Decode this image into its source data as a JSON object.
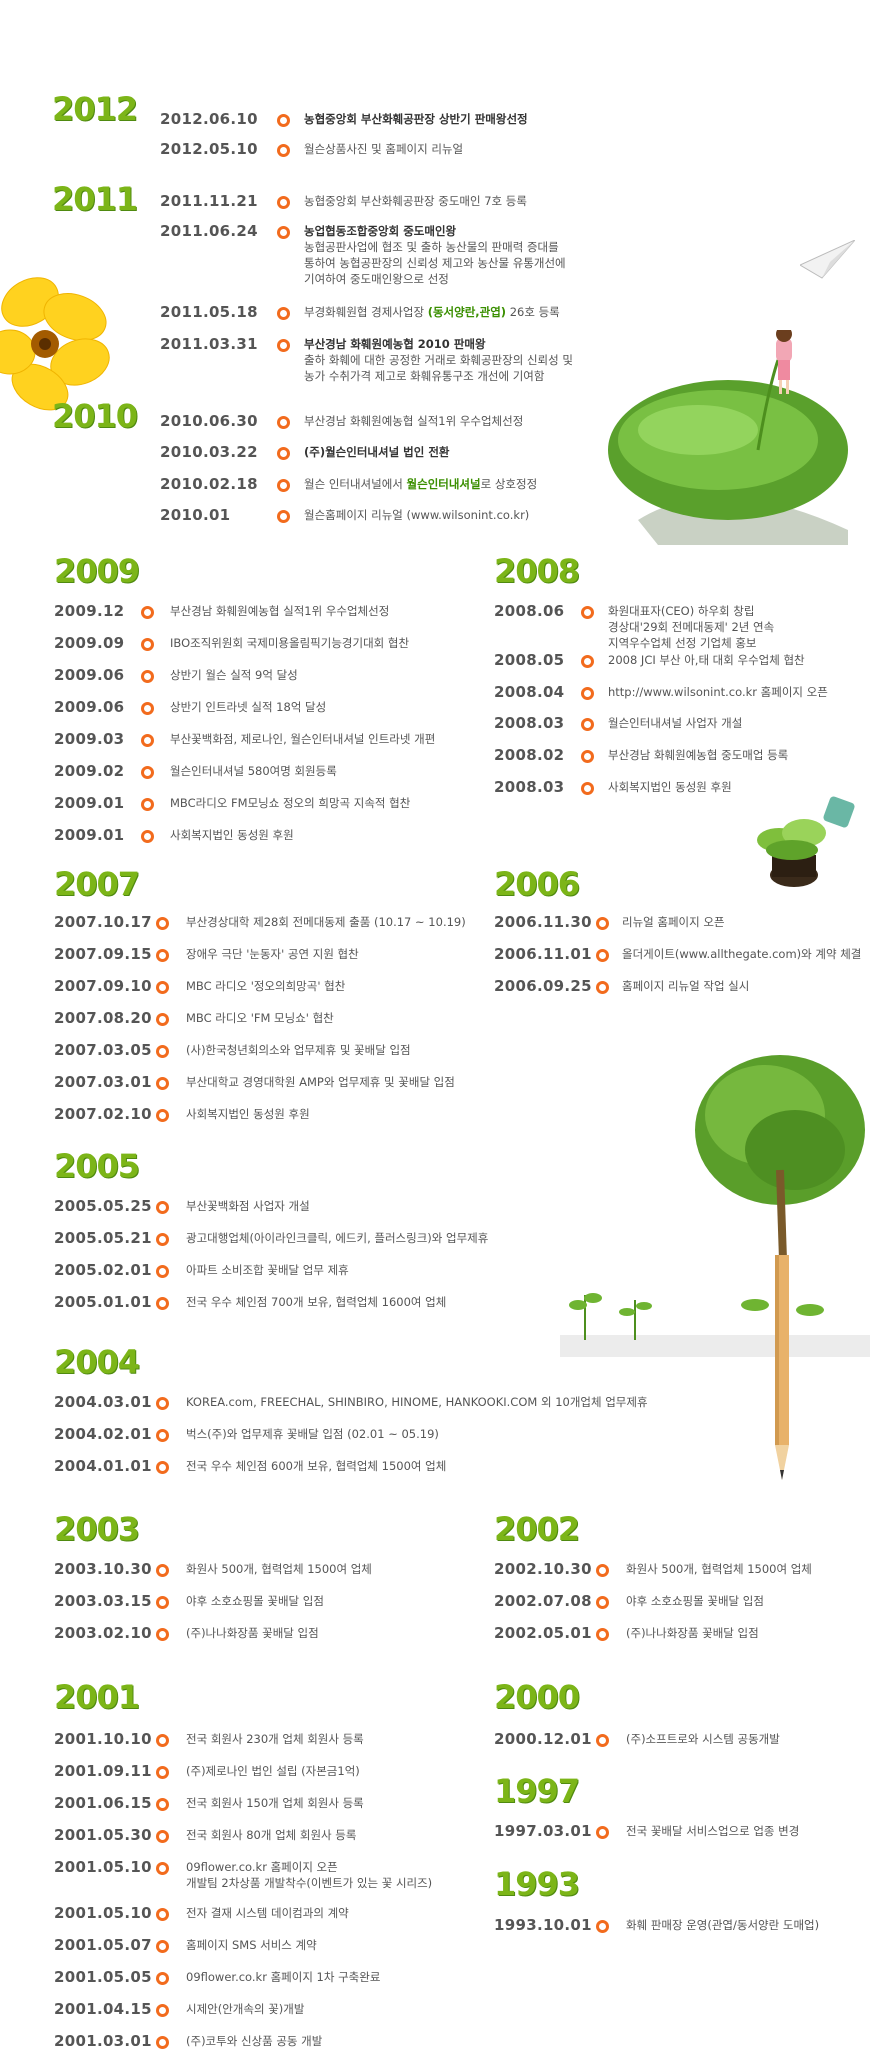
{
  "top": [
    {
      "year": "2012",
      "items": [
        {
          "date": "2012.06.10",
          "text": "농협중앙회 부산화훼공판장 상반기 판매왕선정",
          "bold": true
        },
        {
          "date": "2012.05.10",
          "text": "월슨상품사진 및 홈페이지 리뉴얼"
        }
      ]
    },
    {
      "year": "2011",
      "items": [
        {
          "date": "2011.11.21",
          "text": "농협중앙회 부산화훼공판장 중도매인 7호 등록"
        },
        {
          "date": "2011.06.24",
          "text": "농업협동조합중앙회 중도매인왕",
          "bold": true,
          "lines": [
            "농협공판사업에 협조 및 출하 농산물의 판매력 증대를",
            "통하여 농협공판장의 신뢰성 제고와 농산물 유통개선에",
            "기여하여 중도매인왕으로 선정"
          ]
        },
        {
          "date": "2011.05.18",
          "text": "부경화훼원협 경제사업장 ",
          "hl": "(동서양란,관엽)",
          "after": " 26호 등록"
        },
        {
          "date": "2011.03.31",
          "text": "부산경남 화훼원예농협 2010 판매왕",
          "bold": true,
          "lines": [
            "출하 화훼에 대한 공정한 거래로 화훼공판장의 신뢰성 및",
            "농가 수취가격 제고로 화훼유통구조 개선에 기여함"
          ]
        }
      ]
    },
    {
      "year": "2010",
      "items": [
        {
          "date": "2010.06.30",
          "text": "부산경남 화훼원예농협 실적1위 우수업체선정"
        },
        {
          "date": "2010.03.22",
          "text": "(주)월슨인터내셔널 법인 전환",
          "bold": true
        },
        {
          "date": "2010.02.18",
          "text": "월슨 인터내셔널에서 ",
          "hl": "월슨인터내셔널",
          "after": "로 상호정정"
        },
        {
          "date": "2010.01",
          "text": "월슨홈페이지 리뉴얼 (www.wilsonint.co.kr)"
        }
      ]
    }
  ],
  "y2009": {
    "year": "2009",
    "items": [
      {
        "date": "2009.12",
        "text": "부산경남 화훼원예농협 실적1위 우수업체선정"
      },
      {
        "date": "2009.09",
        "text": "IBO조직위원회 국제미용올림픽기능경기대회 협찬"
      },
      {
        "date": "2009.06",
        "text": "상반기 월슨 실적 9억 달성"
      },
      {
        "date": "2009.06",
        "text": "상반기 인트라넷 실적 18억 달성"
      },
      {
        "date": "2009.03",
        "text": "부산꽃백화점, 제로나인, 월슨인터내셔널 인트라넷 개편"
      },
      {
        "date": "2009.02",
        "text": "월슨인터내셔널 580여명 회원등록"
      },
      {
        "date": "2009.01",
        "text": "MBC라디오 FM모닝쇼 정오의 희망곡 지속적 협찬"
      },
      {
        "date": "2009.01",
        "text": "사회복지법인 동성원 후원"
      }
    ]
  },
  "y2008": {
    "year": "2008",
    "items": [
      {
        "date": "2008.06",
        "lines": [
          "화원대표자(CEO) 하우회 창립",
          "경상대'29회 전메대동제' 2년 연속",
          "지역우수업체 선정 기업체 홍보"
        ]
      },
      {
        "date": "2008.05",
        "text": "2008 JCI 부산 아,태 대회 우수업체 협찬"
      },
      {
        "date": "2008.04",
        "text": "http://www.wilsonint.co.kr 홈페이지 오픈"
      },
      {
        "date": "2008.03",
        "text": "월슨인터내셔널 사업자 개설"
      },
      {
        "date": "2008.02",
        "text": "부산경남 화훼원예농협 중도매업 등록"
      },
      {
        "date": "2008.03",
        "text": "사회복지법인 동성원 후원"
      }
    ]
  },
  "y2007": {
    "year": "2007",
    "items": [
      {
        "date": "2007.10.17",
        "text": "부산경상대학 제28회 전메대동제 출품 (10.17 ~ 10.19)"
      },
      {
        "date": "2007.09.15",
        "text": "장애우 극단 '눈동자' 공연 지원 협찬"
      },
      {
        "date": "2007.09.10",
        "text": "MBC 라디오 '정오의희망곡' 협찬"
      },
      {
        "date": "2007.08.20",
        "text": "MBC 라디오 'FM 모닝쇼' 협찬"
      },
      {
        "date": "2007.03.05",
        "text": "(사)한국청년회의소와 업무제휴 및 꽃배달 입점"
      },
      {
        "date": "2007.03.01",
        "text": "부산대학교 경영대학원 AMP와 업무제휴 및 꽃배달 입점"
      },
      {
        "date": "2007.02.10",
        "text": "사회복지법인 동성원 후원"
      }
    ]
  },
  "y2006": {
    "year": "2006",
    "items": [
      {
        "date": "2006.11.30",
        "text": "리뉴얼 홈페이지 오픈"
      },
      {
        "date": "2006.11.01",
        "text": "올더게이트(www.allthegate.com)와 계약 체결"
      },
      {
        "date": "2006.09.25",
        "text": "홈페이지 리뉴얼 작업 실시"
      }
    ]
  },
  "y2005": {
    "year": "2005",
    "items": [
      {
        "date": "2005.05.25",
        "text": "부산꽃백화점 사업자 개설"
      },
      {
        "date": "2005.05.21",
        "text": "광고대행업체(아이라인크클릭, 에드키, 플러스링크)와 업무제휴"
      },
      {
        "date": "2005.02.01",
        "text": "아파트 소비조합 꽃배달 업무 제휴"
      },
      {
        "date": "2005.01.01",
        "text": "전국 우수 체인점 700개 보유, 협력업체 1600여 업체"
      }
    ]
  },
  "y2004": {
    "year": "2004",
    "items": [
      {
        "date": "2004.03.01",
        "text": "KOREA.com, FREECHAL, SHINBIRO, HINOME, HANKOOKI.COM 외 10개업체 업무제휴"
      },
      {
        "date": "2004.02.01",
        "text": "벅스(주)와 업무제휴 꽃배달 입점 (02.01 ~ 05.19)"
      },
      {
        "date": "2004.01.01",
        "text": "전국 우수 체인점 600개 보유, 협력업체 1500여 업체"
      }
    ]
  },
  "y2003": {
    "year": "2003",
    "items": [
      {
        "date": "2003.10.30",
        "text": "화원사 500개, 협력업체 1500여 업체"
      },
      {
        "date": "2003.03.15",
        "text": "야후 소호쇼핑몰 꽃배달 입점"
      },
      {
        "date": "2003.02.10",
        "text": "(주)나나화장품 꽃배달 입점"
      }
    ]
  },
  "y2002": {
    "year": "2002",
    "items": [
      {
        "date": "2002.10.30",
        "text": "화원사 500개, 협력업체 1500여 업체"
      },
      {
        "date": "2002.07.08",
        "text": "야후 소호쇼핑몰 꽃배달 입점"
      },
      {
        "date": "2002.05.01",
        "text": "(주)나나화장품 꽃배달 입점"
      }
    ]
  },
  "y2001": {
    "year": "2001",
    "items": [
      {
        "date": "2001.10.10",
        "text": "전국 회원사 230개 업체 회원사 등록"
      },
      {
        "date": "2001.09.11",
        "text": "(주)제로나인 법인 설립 (자본금1억)"
      },
      {
        "date": "2001.06.15",
        "text": "전국 회원사 150개 업체 회원사 등록"
      },
      {
        "date": "2001.05.30",
        "text": "전국 회원사 80개 업체 회원사 등록"
      },
      {
        "date": "2001.05.10",
        "lines": [
          "09flower.co.kr 홈페이지 오픈",
          "개발팀 2차상품 개발착수(이벤트가 있는 꽃 시리즈)"
        ]
      },
      {
        "date": "2001.05.10",
        "text": "전자 결재 시스템 데이컴과의 계약"
      },
      {
        "date": "2001.05.07",
        "text": "홈페이지 SMS 서비스 계약"
      },
      {
        "date": "2001.05.05",
        "text": "09flower.co.kr 홈페이지 1차 구축완료"
      },
      {
        "date": "2001.04.15",
        "text": "시제안(안개속의 꽃)개발"
      },
      {
        "date": "2001.03.01",
        "text": "(주)코투와 신상품 공동 개발"
      }
    ]
  },
  "y2000": {
    "year": "2000",
    "items": [
      {
        "date": "2000.12.01",
        "text": "(주)소프트로와 시스템 공동개발"
      }
    ]
  },
  "y1997": {
    "year": "1997",
    "items": [
      {
        "date": "1997.03.01",
        "text": "전국 꽃배달 서비스업으로 업종 변경"
      }
    ]
  },
  "y1993": {
    "year": "1993",
    "items": [
      {
        "date": "1993.10.01",
        "text": "화훼 판매장 운영(관엽/동서양란 도매업)"
      }
    ]
  },
  "decor": {
    "flower": "yellow-flower-icon",
    "girl": "girl-on-grass-illustration",
    "plane": "paper-plane-icon",
    "pot": "plant-pot-illustration",
    "tree": "pencil-tree-illustration",
    "sprouts": "sprouts-illustration"
  }
}
